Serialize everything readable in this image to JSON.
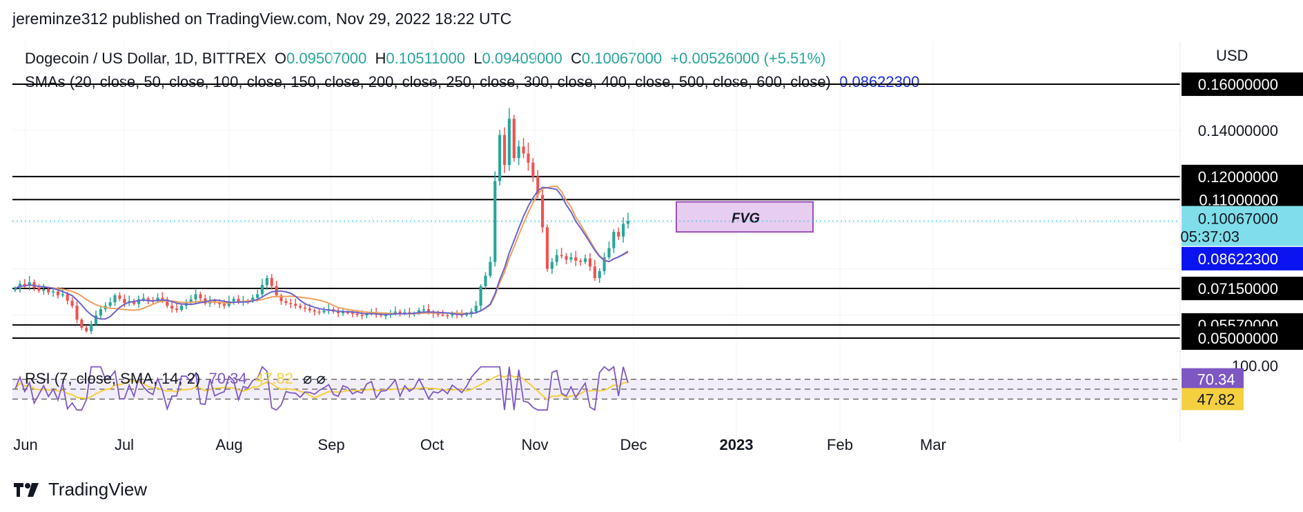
{
  "header": {
    "published": "jereminze312 published on TradingView.com, Nov 29, 2022 18:22 UTC"
  },
  "legend": {
    "symbol": "Dogecoin / US Dollar, 1D, BITTREX",
    "o_label": "O",
    "o_value": "0.09507000",
    "h_label": "H",
    "h_value": "0.10511000",
    "l_label": "L",
    "l_value": "0.09409000",
    "c_label": "C",
    "c_value": "0.10067000",
    "change": "+0.00526000 (+5.51%)",
    "sma_label": "SMAs (20, close, 50, close, 100, close, 150, close, 200, close, 250, close, 300, close, 400, close, 500, close, 600, close)",
    "sma_value": "0.08622300"
  },
  "rsi": {
    "label": "RSI (7, close, SMA, 14, 2)",
    "value": "70.34",
    "ma_value": "47.82",
    "badge_value": "70.34",
    "badge_ma": "47.82",
    "axis_top": "100.00"
  },
  "price_axis": {
    "currency": "USD",
    "labels": [
      "0.16000000",
      "0.14000000",
      "0.12000000",
      "0.11000000",
      "0.10067000",
      "05:37:03",
      "0.08622300",
      "0.07150000",
      "0.05570000",
      "0.05000000"
    ]
  },
  "fvg_label": "FVG",
  "footer": {
    "brand": "TradingView"
  },
  "colors": {
    "up": "#26a69a",
    "down": "#ef5350",
    "sma_blue": "#6a63c9",
    "sma_orange": "#f0a05a",
    "rsi_line": "#7e57c2",
    "rsi_ma": "#f4d03f",
    "fvg_fill": "#e7cdf0",
    "fvg_stroke": "#9b4fb8",
    "last_price_bg": "#80deea",
    "sma_badge_bg": "#0a14f0"
  },
  "chart_data": {
    "type": "candlestick",
    "title": "Dogecoin / US Dollar, 1D, BITTREX",
    "x_ticks": [
      "Jun",
      "Jul",
      "Aug",
      "Sep",
      "Oct",
      "Nov",
      "Dec",
      "2023",
      "Feb",
      "Mar"
    ],
    "y_axis_labels": [
      "0.16000000",
      "0.14000000",
      "0.12000000",
      "0.11000000",
      "0.10067000",
      "0.08622300",
      "0.07150000",
      "0.05570000",
      "0.05000000"
    ],
    "horizontal_levels": [
      0.16,
      0.12,
      0.11,
      0.0715,
      0.0557,
      0.05
    ],
    "last_price": 0.10067,
    "sma_last": 0.086223,
    "fvg_zone": {
      "from": "2022-11-02",
      "to": "2022-12-08",
      "low": 0.096,
      "high": 0.109
    },
    "ohlc_close_series": [
      0.0715,
      0.0735,
      0.0728,
      0.0742,
      0.0718,
      0.0705,
      0.0712,
      0.0698,
      0.0702,
      0.0685,
      0.069,
      0.0662,
      0.064,
      0.058,
      0.0545,
      0.053,
      0.056,
      0.0598,
      0.0625,
      0.064,
      0.0655,
      0.0685,
      0.067,
      0.0652,
      0.066,
      0.0648,
      0.0668,
      0.0672,
      0.0665,
      0.066,
      0.0675,
      0.0668,
      0.064,
      0.0628,
      0.0622,
      0.064,
      0.0655,
      0.0668,
      0.069,
      0.0672,
      0.065,
      0.0662,
      0.0655,
      0.0648,
      0.064,
      0.066,
      0.067,
      0.0658,
      0.0662,
      0.066,
      0.0675,
      0.069,
      0.073,
      0.076,
      0.0725,
      0.0685,
      0.066,
      0.0652,
      0.0648,
      0.064,
      0.0632,
      0.0628,
      0.062,
      0.0615,
      0.0612,
      0.0618,
      0.0625,
      0.0615,
      0.0608,
      0.0612,
      0.061,
      0.0605,
      0.06,
      0.0598,
      0.0605,
      0.0612,
      0.0602,
      0.0598,
      0.06,
      0.0605,
      0.0615,
      0.0608,
      0.0612,
      0.0605,
      0.0608,
      0.062,
      0.0625,
      0.0612,
      0.0605,
      0.0602,
      0.06,
      0.0598,
      0.0604,
      0.0602,
      0.06,
      0.0603,
      0.0615,
      0.064,
      0.0725,
      0.077,
      0.083,
      0.118,
      0.138,
      0.125,
      0.145,
      0.128,
      0.133,
      0.13,
      0.126,
      0.12,
      0.112,
      0.098,
      0.08,
      0.083,
      0.086,
      0.0855,
      0.084,
      0.085,
      0.0835,
      0.083,
      0.0845,
      0.081,
      0.076,
      0.079,
      0.085,
      0.089,
      0.096,
      0.094,
      0.0995,
      0.1007
    ],
    "rsi": {
      "last": 70.34,
      "ma_last": 47.82,
      "range": [
        0,
        100
      ],
      "bands": [
        70,
        50,
        30
      ]
    }
  }
}
